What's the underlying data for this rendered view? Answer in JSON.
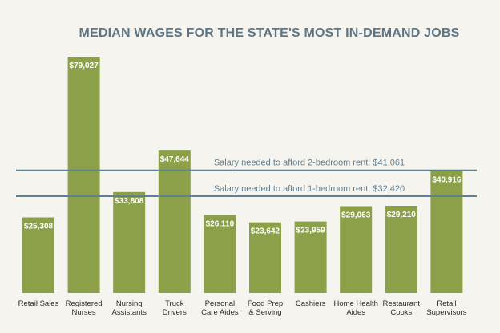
{
  "chart_data": {
    "type": "bar",
    "title": "MEDIAN WAGES FOR THE STATE'S MOST IN-DEMAND JOBS",
    "xlabel": "",
    "ylabel": "",
    "ylim": [
      0,
      85000
    ],
    "grid": false,
    "categories": [
      [
        "Retail Sales"
      ],
      [
        "Registered",
        "Nurses"
      ],
      [
        "Nursing",
        "Assistants"
      ],
      [
        "Truck",
        "Drivers"
      ],
      [
        "Personal",
        "Care Aides"
      ],
      [
        "Food Prep",
        "& Serving"
      ],
      [
        "Cashiers"
      ],
      [
        "Home Health",
        "Aides"
      ],
      [
        "Restaurant",
        "Cooks"
      ],
      [
        "Retail",
        "Supervisors"
      ]
    ],
    "values": [
      25308,
      79027,
      33808,
      47644,
      26110,
      23642,
      23959,
      29063,
      29210,
      40916
    ],
    "value_labels": [
      "$25,308",
      "$79,027",
      "$33,808",
      "$47,644",
      "$26,110",
      "$23,642",
      "$23,959",
      "$29,063",
      "$29,210",
      "$40,916"
    ],
    "reference_lines": [
      {
        "value": 41061,
        "label": "Salary needed to afford 2-bedroom rent: $41,061"
      },
      {
        "value": 32420,
        "label": "Salary needed to afford 1-bedroom rent: $32,420"
      }
    ],
    "colors": {
      "bar": "#8ca04a",
      "reference_line": "#5f7f93",
      "title": "#5d7585",
      "background": "#f6f4ee"
    }
  }
}
